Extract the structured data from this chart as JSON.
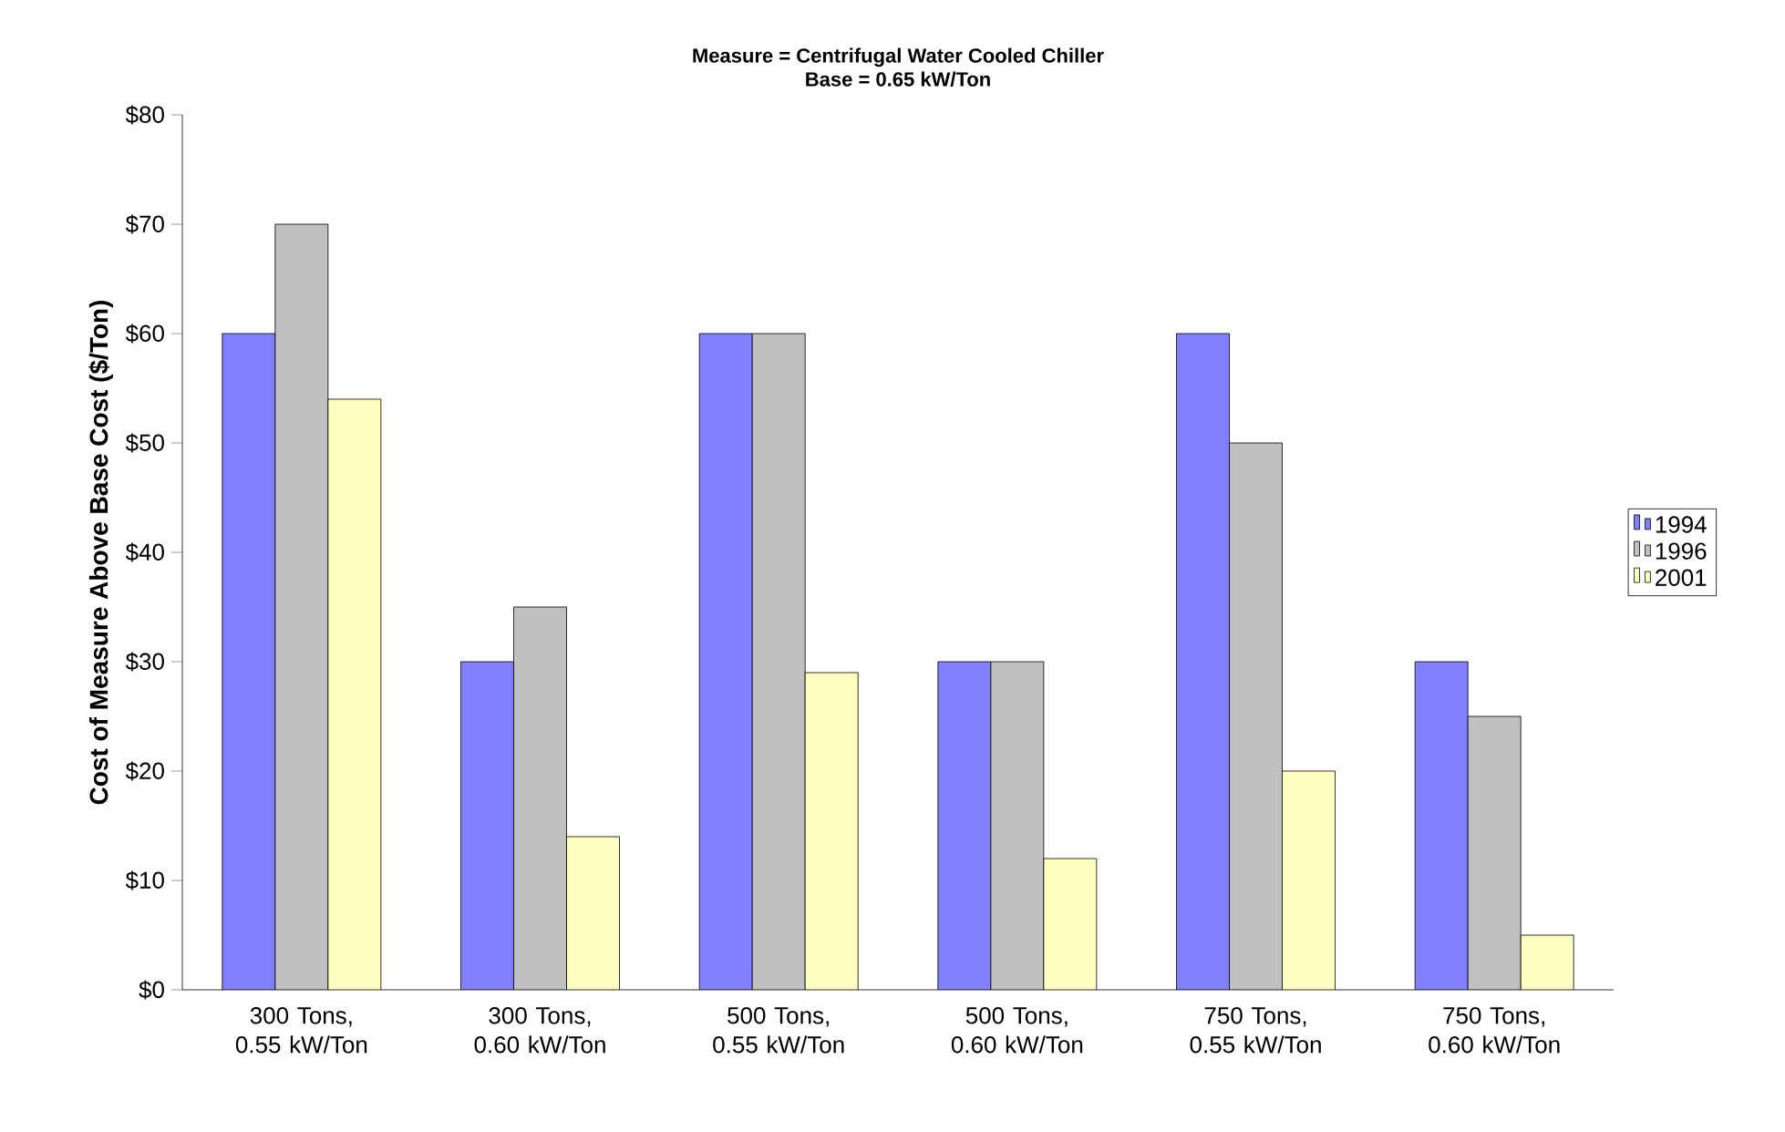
{
  "chart_data": {
    "type": "bar",
    "title": "Measure = Centrifugal Water Cooled Chiller",
    "subtitle": "Base = 0.65 kW/Ton",
    "ylabel": "Cost of Measure Above Base Cost ($/Ton)",
    "categories": [
      "300 Tons, 0.55 kW/Ton",
      "300 Tons, 0.60 kW/Ton",
      "500 Tons, 0.55 kW/Ton",
      "500 Tons, 0.60 kW/Ton",
      "750 Tons, 0.55 kW/Ton",
      "750 Tons, 0.60 kW/Ton"
    ],
    "series": [
      {
        "name": "1994",
        "color": "#8080ff",
        "values": [
          60,
          30,
          60,
          30,
          60,
          30
        ]
      },
      {
        "name": "1996",
        "color": "#c0c0c0",
        "values": [
          70,
          35,
          60,
          30,
          50,
          25
        ]
      },
      {
        "name": "2001",
        "color": "#ffffc0",
        "values": [
          54,
          14,
          29,
          12,
          20,
          5
        ]
      }
    ],
    "ylim": [
      0,
      80
    ],
    "yticks": [
      {
        "value": 0,
        "label": "$0"
      },
      {
        "value": 10,
        "label": "$10"
      },
      {
        "value": 20,
        "label": "$20"
      },
      {
        "value": 30,
        "label": "$30"
      },
      {
        "value": 40,
        "label": "$40"
      },
      {
        "value": 50,
        "label": "$50"
      },
      {
        "value": 60,
        "label": "$60"
      },
      {
        "value": 70,
        "label": "$70"
      },
      {
        "value": 80,
        "label": "$80"
      }
    ],
    "grid": false,
    "legend": "right"
  }
}
